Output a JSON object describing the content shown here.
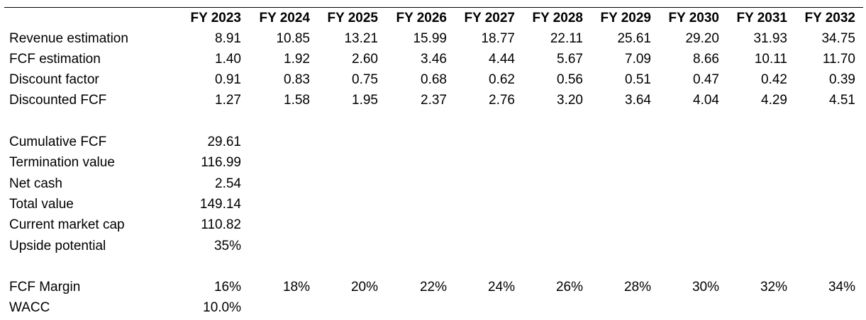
{
  "header": {
    "years": [
      "FY 2023",
      "FY 2024",
      "FY 2025",
      "FY 2026",
      "FY 2027",
      "FY 2028",
      "FY 2029",
      "FY 2030",
      "FY 2031",
      "FY 2032"
    ]
  },
  "projection_rows": [
    {
      "label": "Revenue estimation",
      "values": [
        "8.91",
        "10.85",
        "13.21",
        "15.99",
        "18.77",
        "22.11",
        "25.61",
        "29.20",
        "31.93",
        "34.75"
      ]
    },
    {
      "label": "FCF estimation",
      "values": [
        "1.40",
        "1.92",
        "2.60",
        "3.46",
        "4.44",
        "5.67",
        "7.09",
        "8.66",
        "10.11",
        "11.70"
      ]
    },
    {
      "label": "Discount factor",
      "values": [
        "0.91",
        "0.83",
        "0.75",
        "0.68",
        "0.62",
        "0.56",
        "0.51",
        "0.47",
        "0.42",
        "0.39"
      ]
    },
    {
      "label": "Discounted FCF",
      "values": [
        "1.27",
        "1.58",
        "1.95",
        "2.37",
        "2.76",
        "3.20",
        "3.64",
        "4.04",
        "4.29",
        "4.51"
      ]
    }
  ],
  "valuation_rows": [
    {
      "label": "Cumulative FCF",
      "value": "29.61"
    },
    {
      "label": "Termination value",
      "value": "116.99"
    },
    {
      "label": "Net cash",
      "value": "2.54"
    },
    {
      "label": "Total value",
      "value": "149.14"
    },
    {
      "label": "Current market cap",
      "value": "110.82"
    },
    {
      "label": "Upside potential",
      "value": "35%"
    }
  ],
  "assumption_rows": [
    {
      "label": "FCF Margin",
      "values": [
        "16%",
        "18%",
        "20%",
        "22%",
        "24%",
        "26%",
        "28%",
        "30%",
        "32%",
        "34%"
      ]
    },
    {
      "label": "WACC",
      "values": [
        "10.0%"
      ]
    }
  ]
}
